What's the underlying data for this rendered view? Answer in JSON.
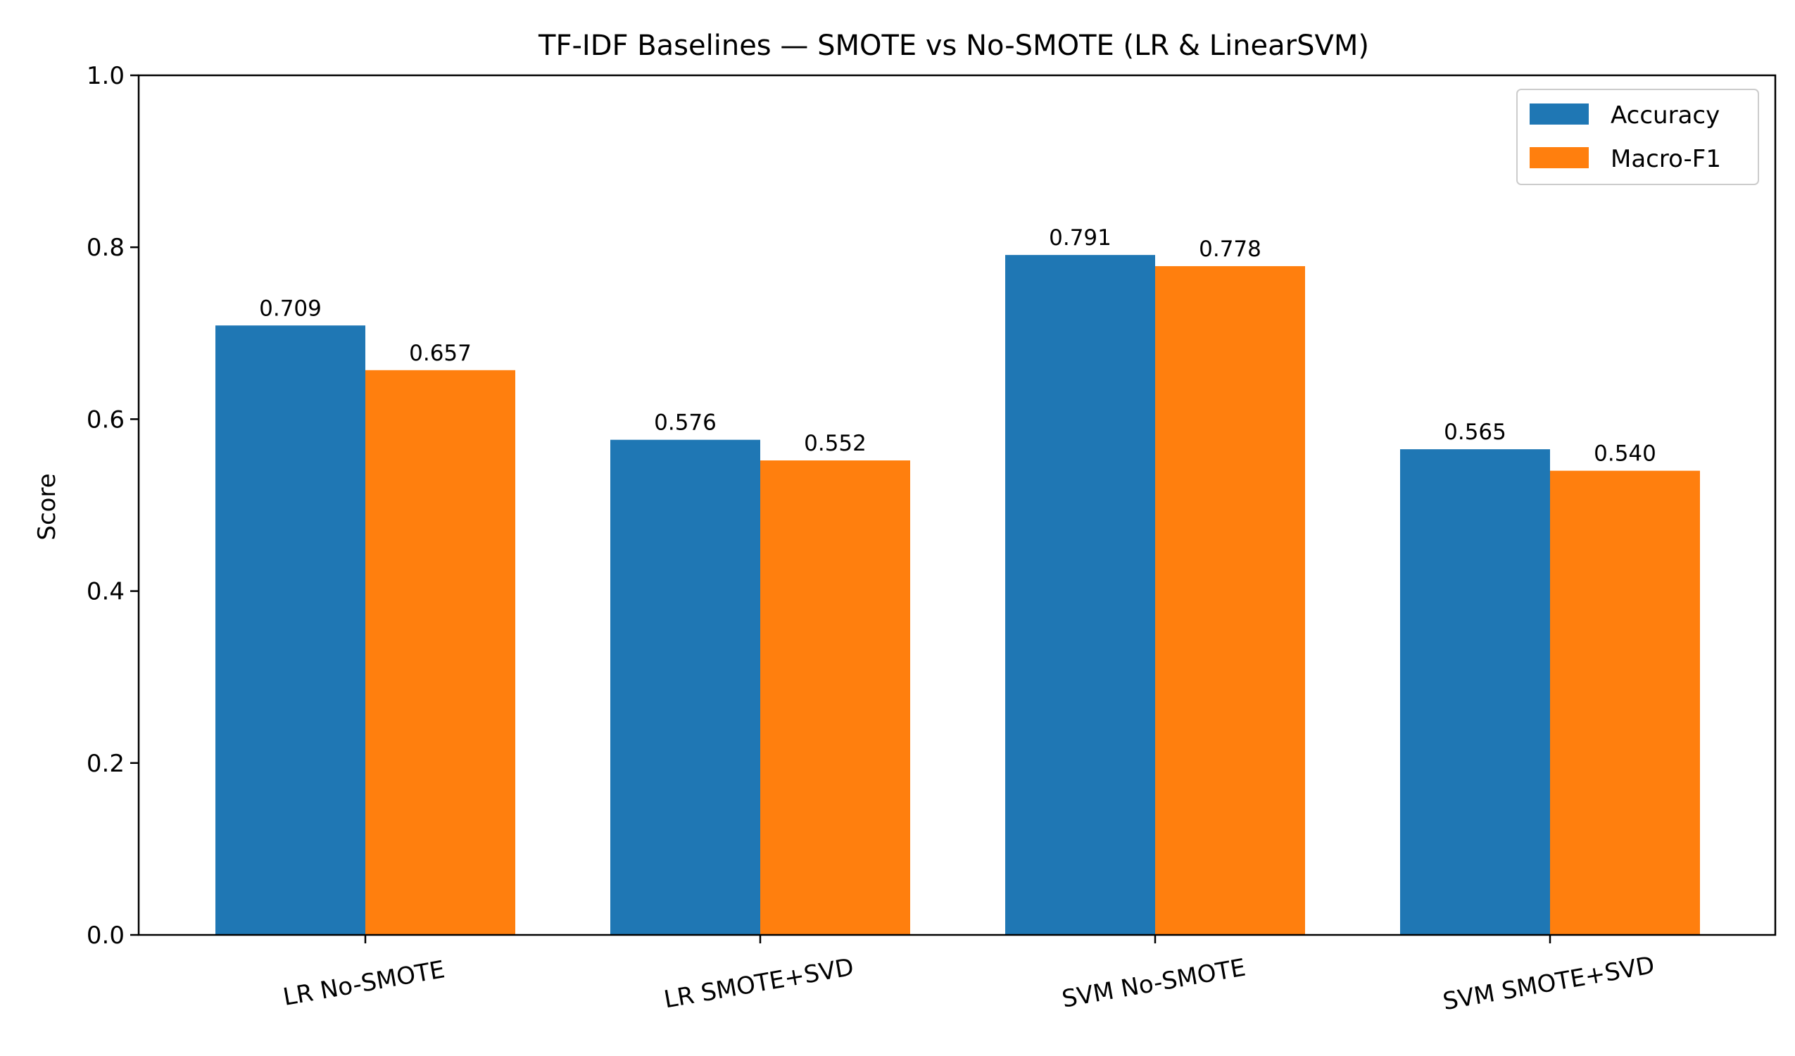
{
  "chart_data": {
    "type": "bar",
    "title": "TF-IDF Baselines — SMOTE vs No-SMOTE (LR & LinearSVM)",
    "xlabel": "",
    "ylabel": "Score",
    "ylim": [
      0,
      1.0
    ],
    "yticks": [
      "0.0",
      "0.2",
      "0.4",
      "0.6",
      "0.8",
      "1.0"
    ],
    "categories": [
      "LR No-SMOTE",
      "LR SMOTE+SVD",
      "SVM No-SMOTE",
      "SVM SMOTE+SVD"
    ],
    "series": [
      {
        "name": "Accuracy",
        "color": "#1f77b4",
        "values": [
          0.709,
          0.576,
          0.791,
          0.565
        ],
        "labels": [
          "0.709",
          "0.576",
          "0.791",
          "0.565"
        ]
      },
      {
        "name": "Macro-F1",
        "color": "#ff7f0e",
        "values": [
          0.657,
          0.552,
          0.778,
          0.54
        ],
        "labels": [
          "0.657",
          "0.552",
          "0.778",
          "0.540"
        ]
      }
    ],
    "legend": "top-right",
    "grid": false
  }
}
